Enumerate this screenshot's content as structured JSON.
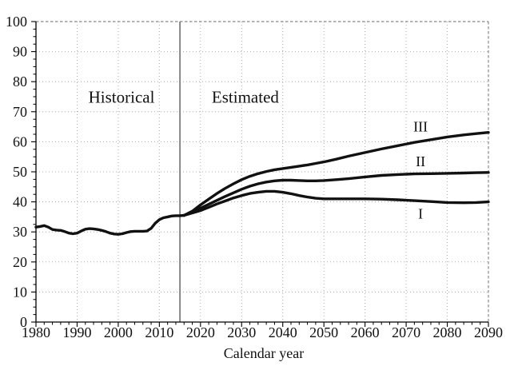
{
  "chart_data": {
    "type": "line",
    "title": "",
    "xlabel": "Calendar year",
    "ylabel": "",
    "xlim": [
      1980,
      2090
    ],
    "ylim": [
      0,
      100
    ],
    "xticks": [
      1980,
      1990,
      2000,
      2010,
      2020,
      2030,
      2040,
      2050,
      2060,
      2070,
      2080,
      2090
    ],
    "yticks": [
      0,
      10,
      20,
      30,
      40,
      50,
      60,
      70,
      80,
      90,
      100
    ],
    "x_minor_step": 2,
    "y_minor_step": 2.5,
    "grid": "dotted",
    "legend_position": "none",
    "divider_year": 2015,
    "colors": {
      "line": "#111111",
      "grid": "#aaaaaa",
      "frame": "#888888",
      "divider": "#777777",
      "axis": "#000000",
      "background": "#ffffff"
    },
    "region_labels": [
      {
        "text": "Historical",
        "x": 2000.8,
        "y": 74.9
      },
      {
        "text": "Estimated",
        "x": 2030.9,
        "y": 74.9
      }
    ],
    "series": [
      {
        "name": "Historical",
        "x": [
          1980,
          1981,
          1982,
          1983,
          1984,
          1985,
          1986,
          1987,
          1988,
          1989,
          1990,
          1991,
          1992,
          1993,
          1994,
          1995,
          1996,
          1997,
          1998,
          1999,
          2000,
          2001,
          2002,
          2003,
          2004,
          2005,
          2006,
          2007,
          2008,
          2009,
          2010,
          2011,
          2012,
          2013,
          2014,
          2015,
          2016
        ],
        "values": [
          31.6,
          31.8,
          32.1,
          31.6,
          30.8,
          30.6,
          30.5,
          30.1,
          29.6,
          29.4,
          29.6,
          30.3,
          30.9,
          31.1,
          31.0,
          30.8,
          30.5,
          30.1,
          29.6,
          29.3,
          29.2,
          29.4,
          29.8,
          30.1,
          30.2,
          30.2,
          30.2,
          30.3,
          31.2,
          32.9,
          34.1,
          34.7,
          35.0,
          35.3,
          35.4,
          35.4,
          35.5
        ]
      },
      {
        "name": "I",
        "label": {
          "text": "I",
          "x": 2073.5,
          "y": 36.0
        },
        "x": [
          2016,
          2018,
          2020,
          2022,
          2024,
          2026,
          2028,
          2030,
          2032,
          2034,
          2036,
          2038,
          2040,
          2042,
          2044,
          2046,
          2048,
          2050,
          2053,
          2056,
          2060,
          2064,
          2068,
          2072,
          2076,
          2080,
          2084,
          2087,
          2090
        ],
        "values": [
          35.5,
          36.3,
          37.1,
          38.2,
          39.3,
          40.3,
          41.3,
          42.1,
          42.8,
          43.2,
          43.5,
          43.5,
          43.2,
          42.7,
          42.1,
          41.6,
          41.2,
          41.0,
          41.0,
          41.0,
          41.0,
          40.9,
          40.7,
          40.4,
          40.1,
          39.8,
          39.7,
          39.8,
          40.0
        ]
      },
      {
        "name": "II",
        "label": {
          "text": "II",
          "x": 2073.5,
          "y": 53.5
        },
        "x": [
          2016,
          2018,
          2020,
          2022,
          2024,
          2026,
          2028,
          2030,
          2032,
          2034,
          2036,
          2038,
          2040,
          2042,
          2044,
          2046,
          2048,
          2050,
          2053,
          2056,
          2060,
          2064,
          2068,
          2072,
          2076,
          2080,
          2084,
          2087,
          2090
        ],
        "values": [
          35.5,
          36.6,
          37.9,
          39.2,
          40.5,
          41.8,
          43.0,
          44.2,
          45.2,
          46.0,
          46.6,
          47.0,
          47.2,
          47.2,
          47.1,
          47.0,
          47.0,
          47.1,
          47.4,
          47.7,
          48.3,
          48.8,
          49.1,
          49.3,
          49.4,
          49.5,
          49.6,
          49.7,
          49.8
        ]
      },
      {
        "name": "III",
        "label": {
          "text": "III",
          "x": 2073.5,
          "y": 65.0
        },
        "x": [
          2016,
          2018,
          2020,
          2022,
          2024,
          2026,
          2028,
          2030,
          2032,
          2034,
          2036,
          2038,
          2040,
          2042,
          2044,
          2046,
          2048,
          2050,
          2053,
          2056,
          2060,
          2064,
          2068,
          2072,
          2076,
          2080,
          2084,
          2087,
          2090
        ],
        "values": [
          35.5,
          36.9,
          39.0,
          40.9,
          42.8,
          44.5,
          46.0,
          47.4,
          48.5,
          49.4,
          50.1,
          50.7,
          51.1,
          51.5,
          51.9,
          52.3,
          52.8,
          53.3,
          54.2,
          55.2,
          56.4,
          57.6,
          58.7,
          59.8,
          60.7,
          61.6,
          62.3,
          62.7,
          63.1
        ]
      }
    ]
  }
}
